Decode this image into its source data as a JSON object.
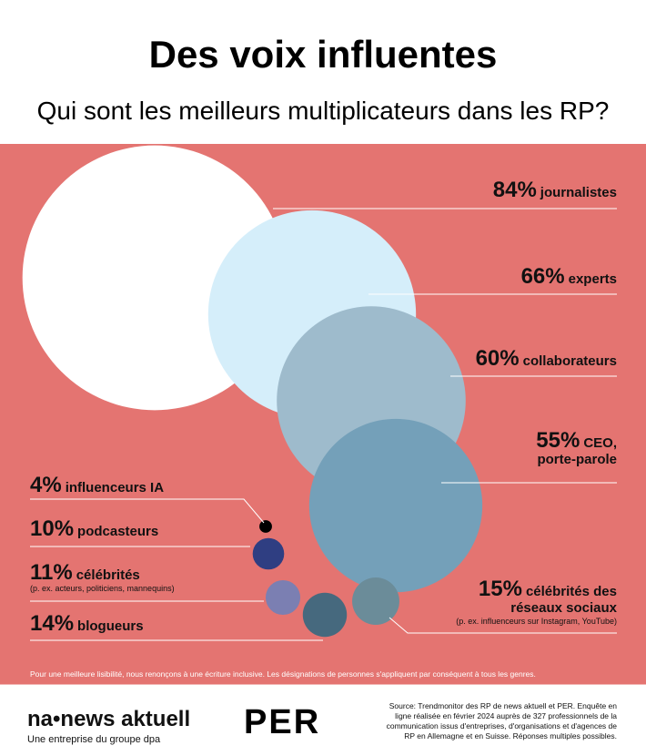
{
  "chart_data": {
    "type": "bubble",
    "title": "Des voix influentes",
    "subtitle": "Qui sont les meilleurs multiplicateurs dans les RP?",
    "categories": [
      "journalistes",
      "experts",
      "collaborateurs",
      "CEO, porte-parole",
      "célébrités des réseaux sociaux",
      "blogueurs",
      "célébrités",
      "podcasteurs",
      "influenceurs IA"
    ],
    "values": [
      84,
      66,
      60,
      55,
      15,
      14,
      11,
      10,
      4
    ],
    "value_labels": [
      "84%",
      "66%",
      "60%",
      "55%",
      "15%",
      "14%",
      "11%",
      "10%",
      "4%"
    ],
    "notes": [
      null,
      null,
      null,
      null,
      "(p. ex. influenceurs sur Instagram, YouTube)",
      null,
      "(p. ex. acteurs, politiciens, mannequins)",
      null,
      null
    ],
    "colors": [
      "#ffffff",
      "#d5eefa",
      "#9ebbcc",
      "#74a0b9",
      "#6b8c99",
      "#46697e",
      "#7b7fb2",
      "#2f3e82",
      "#000000"
    ],
    "footnote": "Pour une meilleure lisibilité, nous renonçons à une écriture inclusive. Les désignations de personnes s'appliquent par conséquent à tous les genres."
  },
  "footer": {
    "logo": "na•news aktuell",
    "logo_tagline": "Une entreprise du groupe dpa",
    "partner": "PER",
    "source": "Source: Trendmonitor des RP de news aktuell et PER. Enquête en ligne réalisée en février 2024 auprès de 327 professionnels de la communication issus d'entreprises, d'organisations et d'agences de RP en Allemagne et en Suisse. Réponses multiples possibles."
  }
}
